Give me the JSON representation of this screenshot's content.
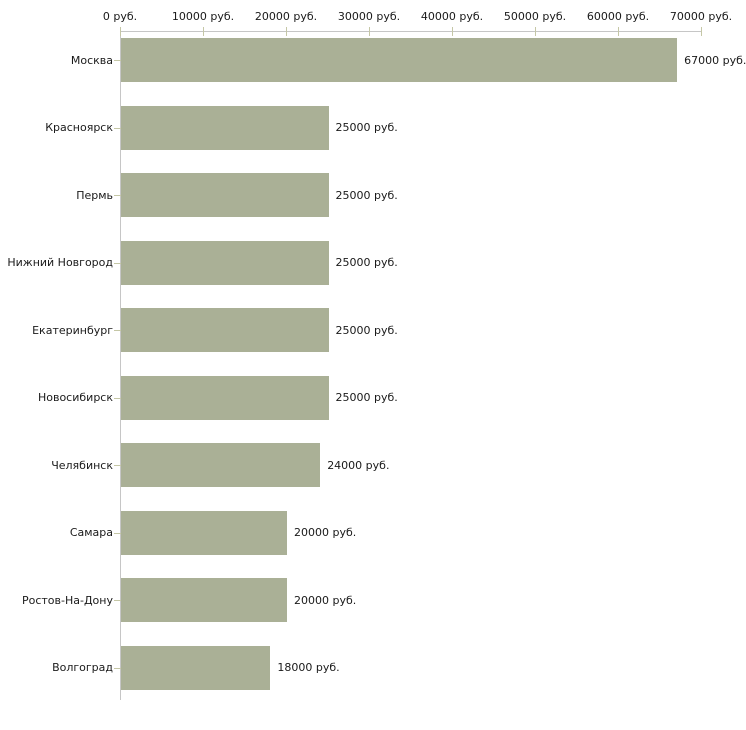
{
  "chart_data": {
    "type": "bar",
    "orientation": "horizontal",
    "title": "",
    "xlabel": "",
    "ylabel": "",
    "categories": [
      "Москва",
      "Красноярск",
      "Пермь",
      "Нижний Новгород",
      "Екатеринбург",
      "Новосибирск",
      "Челябинск",
      "Самара",
      "Ростов-На-Дону",
      "Волгоград"
    ],
    "values": [
      67000,
      25000,
      25000,
      25000,
      25000,
      25000,
      24000,
      20000,
      20000,
      18000
    ],
    "value_labels": [
      "67000 руб.",
      "25000 руб.",
      "25000 руб.",
      "25000 руб.",
      "25000 руб.",
      "25000 руб.",
      "24000 руб.",
      "20000 руб.",
      "20000 руб.",
      "18000 руб."
    ],
    "x_axis": {
      "position": "top",
      "xlim": [
        0,
        70000
      ],
      "tick_values": [
        0,
        10000,
        20000,
        30000,
        40000,
        50000,
        60000,
        70000
      ],
      "tick_labels": [
        "0 руб.",
        "10000 руб.",
        "20000 руб.",
        "30000 руб.",
        "40000 руб.",
        "50000 руб.",
        "60000 руб.",
        "70000 руб."
      ]
    },
    "legend": "none",
    "grid": false,
    "colors": {
      "bar": "#aab096",
      "axis_line": "#c6c6c6",
      "tick": "#c5c7a6",
      "text": "#1a1a1a",
      "background": "#ffffff"
    }
  }
}
